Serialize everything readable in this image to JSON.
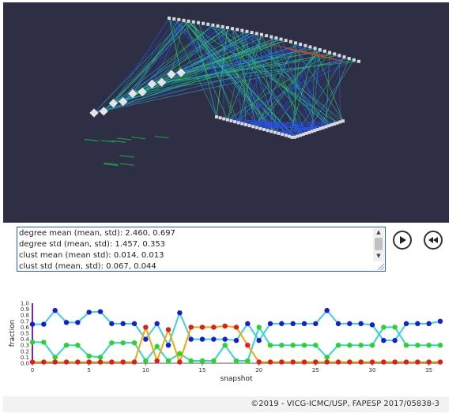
{
  "stats": {
    "lines": [
      "degree mean (mean, std): 2.460, 0.697",
      "degree std (mean, std): 1.457, 0.353",
      "clust mean (mean std): 0.014, 0.013",
      "clust std (mean, std): 0.067, 0.044"
    ]
  },
  "controls": {
    "play_icon": "play-icon",
    "rewind_icon": "rewind-icon"
  },
  "chart_data": {
    "type": "line",
    "xlabel": "snapshot",
    "ylabel": "fraction",
    "xlim": [
      0,
      36
    ],
    "ylim": [
      0,
      1.0
    ],
    "xticks": [
      "0",
      "5",
      "10",
      "15",
      "20",
      "25",
      "30",
      "35"
    ],
    "yticks": [
      "0.0",
      "0.1",
      "0.2",
      "0.3",
      "0.4",
      "0.5",
      "0.6",
      "0.7",
      "0.8",
      "0.9",
      "1.0"
    ],
    "x": [
      0,
      1,
      2,
      3,
      4,
      5,
      6,
      7,
      8,
      9,
      10,
      11,
      12,
      13,
      14,
      15,
      16,
      17,
      18,
      19,
      20,
      21,
      22,
      23,
      24,
      25,
      26,
      27,
      28,
      29,
      30,
      31,
      32,
      33,
      34,
      35,
      36
    ],
    "series": [
      {
        "color": "#1a1adf",
        "line_color": "#33d6d6",
        "values": [
          0.65,
          0.65,
          0.88,
          0.68,
          0.68,
          0.85,
          0.86,
          0.66,
          0.66,
          0.66,
          0.4,
          0.66,
          0.3,
          0.84,
          0.4,
          0.4,
          0.4,
          0.4,
          0.38,
          0.66,
          0.38,
          0.66,
          0.66,
          0.66,
          0.66,
          0.66,
          0.88,
          0.66,
          0.66,
          0.66,
          0.64,
          0.38,
          0.38,
          0.66,
          0.66,
          0.66,
          0.7
        ]
      },
      {
        "color": "#25d825",
        "line_color": "#33d6d6",
        "values": [
          0.35,
          0.35,
          0.1,
          0.3,
          0.3,
          0.12,
          0.1,
          0.34,
          0.34,
          0.34,
          0.04,
          0.28,
          0.04,
          0.16,
          0.04,
          0.04,
          0.04,
          0.3,
          0.04,
          0.04,
          0.6,
          0.3,
          0.3,
          0.3,
          0.3,
          0.3,
          0.1,
          0.3,
          0.3,
          0.3,
          0.3,
          0.6,
          0.6,
          0.3,
          0.3,
          0.3,
          0.3
        ]
      },
      {
        "color": "#e51b1b",
        "line_color": "#f5a800",
        "values": [
          0.02,
          0.02,
          0.02,
          0.02,
          0.02,
          0.02,
          0.02,
          0.02,
          0.02,
          0.02,
          0.6,
          0.04,
          0.56,
          0.02,
          0.6,
          0.6,
          0.6,
          0.62,
          0.6,
          0.3,
          0.02,
          0.02,
          0.02,
          0.02,
          0.02,
          0.02,
          0.02,
          0.02,
          0.02,
          0.02,
          0.02,
          0.02,
          0.02,
          0.02,
          0.02,
          0.02,
          0.02
        ]
      }
    ]
  },
  "footer": {
    "copyright": "©2019 - VICG-ICMC/USP, FAPESP 2017/05838-3"
  }
}
